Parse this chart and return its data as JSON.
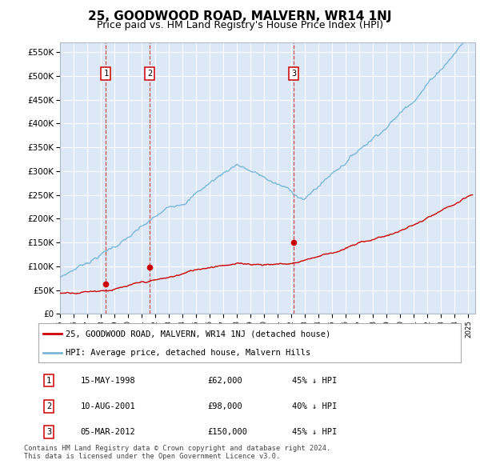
{
  "title": "25, GOODWOOD ROAD, MALVERN, WR14 1NJ",
  "subtitle": "Price paid vs. HM Land Registry's House Price Index (HPI)",
  "title_fontsize": 11,
  "subtitle_fontsize": 9,
  "ylabel_ticks": [
    "£0",
    "£50K",
    "£100K",
    "£150K",
    "£200K",
    "£250K",
    "£300K",
    "£350K",
    "£400K",
    "£450K",
    "£500K",
    "£550K"
  ],
  "ytick_vals": [
    0,
    50000,
    100000,
    150000,
    200000,
    250000,
    300000,
    350000,
    400000,
    450000,
    500000,
    550000
  ],
  "ylim": [
    0,
    570000
  ],
  "sales": [
    {
      "date": 1998.37,
      "price": 62000,
      "label": "1"
    },
    {
      "date": 2001.6,
      "price": 98000,
      "label": "2"
    },
    {
      "date": 2012.17,
      "price": 150000,
      "label": "3"
    }
  ],
  "hpi_color": "#7ab8d9",
  "sale_color": "#cc0000",
  "plot_bg": "#dce8f5",
  "legend_label_sale": "25, GOODWOOD ROAD, MALVERN, WR14 1NJ (detached house)",
  "legend_label_hpi": "HPI: Average price, detached house, Malvern Hills",
  "footer1": "Contains HM Land Registry data © Crown copyright and database right 2024.",
  "footer2": "This data is licensed under the Open Government Licence v3.0.",
  "table": [
    {
      "num": "1",
      "date": "15-MAY-1998",
      "price": "£62,000",
      "change": "45% ↓ HPI"
    },
    {
      "num": "2",
      "date": "10-AUG-2001",
      "price": "£98,000",
      "change": "40% ↓ HPI"
    },
    {
      "num": "3",
      "date": "05-MAR-2012",
      "price": "£150,000",
      "change": "45% ↓ HPI"
    }
  ],
  "xmin": 1995,
  "xmax": 2025.5
}
